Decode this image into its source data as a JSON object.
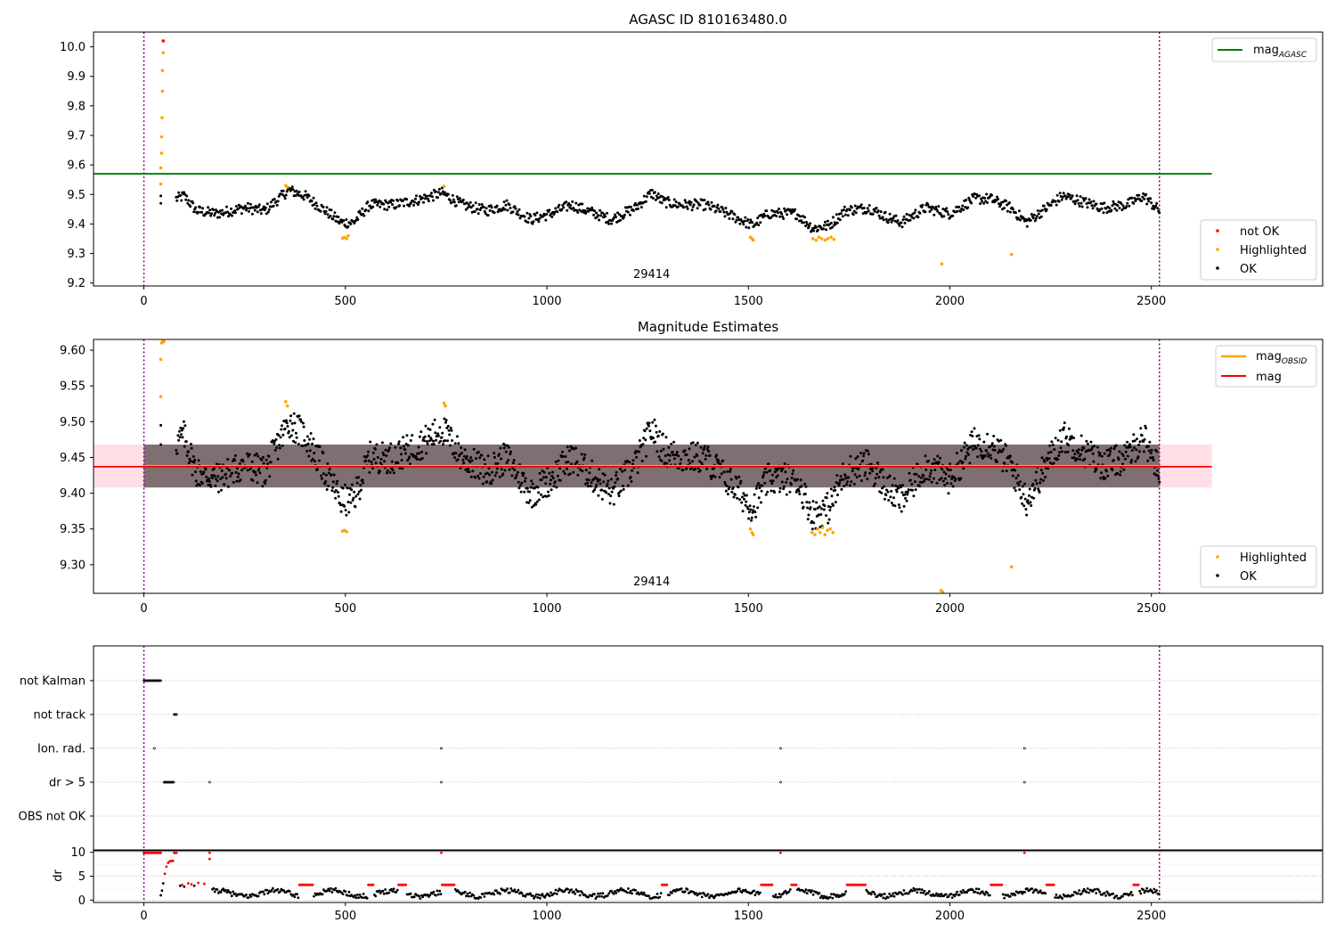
{
  "figure": {
    "background": "#ffffff",
    "colors": {
      "ok": "#000000",
      "highlighted": "#ffa500",
      "not_ok": "#ff0000",
      "mag_agasc": "#008000",
      "mag_obsid": "#ffa500",
      "mag": "#ff0000",
      "obs_boundary": "#800080",
      "band_obsid": "#ffa07a",
      "band_mag": "#ffc0cb"
    }
  },
  "chart_data": [
    {
      "id": "agasc",
      "type": "scatter",
      "title": "AGASC ID 810163480.0",
      "xlim": [
        -125,
        2925
      ],
      "ylim": [
        9.19,
        10.05
      ],
      "xticks": [
        0,
        500,
        1000,
        1500,
        2000,
        2500
      ],
      "yticks": [
        9.2,
        9.3,
        9.4,
        9.5,
        9.6,
        9.7,
        9.8,
        9.9,
        10.0
      ],
      "xtick_labels": [
        "0",
        "500",
        "1000",
        "1500",
        "2000",
        "2500"
      ],
      "ytick_labels": [
        "9.2",
        "9.3",
        "9.4",
        "9.5",
        "9.6",
        "9.7",
        "9.8",
        "9.9",
        "10.0"
      ],
      "vlines": [
        0,
        2520
      ],
      "obsid_label": {
        "text": "29414",
        "x": 1260
      },
      "hlines": [
        {
          "name": "mag_agasc",
          "y": 9.57,
          "xmin": -125,
          "xmax": 2650
        }
      ],
      "ok_points": {
        "curve": "obsid_mag",
        "offset": 0.015,
        "jitter": 0.018,
        "step": 2.2,
        "xmin": 80,
        "xmax": 2520
      },
      "ok_extra": [
        [
          42,
          9.495
        ],
        [
          42,
          9.47
        ]
      ],
      "highlighted": [
        [
          42,
          9.535
        ],
        [
          42,
          9.59
        ],
        [
          44,
          9.64
        ],
        [
          44,
          9.695
        ],
        [
          45,
          9.76
        ],
        [
          46,
          9.85
        ],
        [
          46,
          9.92
        ],
        [
          48,
          9.98
        ],
        [
          352,
          9.53
        ],
        [
          356,
          9.525
        ],
        [
          493,
          9.352
        ],
        [
          498,
          9.355
        ],
        [
          503,
          9.35
        ],
        [
          507,
          9.36
        ],
        [
          745,
          9.528
        ],
        [
          1505,
          9.355
        ],
        [
          1509,
          9.35
        ],
        [
          1512,
          9.345
        ],
        [
          1660,
          9.35
        ],
        [
          1668,
          9.345
        ],
        [
          1675,
          9.355
        ],
        [
          1682,
          9.35
        ],
        [
          1690,
          9.345
        ],
        [
          1697,
          9.35
        ],
        [
          1705,
          9.355
        ],
        [
          1712,
          9.348
        ],
        [
          1980,
          9.265
        ],
        [
          2153,
          9.297
        ]
      ],
      "not_ok": [
        [
          48,
          10.02
        ]
      ],
      "legends": [
        {
          "position": "upper right",
          "entries": [
            {
              "label": "mag",
              "sub": "AGASC",
              "type": "line",
              "color": "mag_agasc"
            }
          ]
        },
        {
          "position": "lower right",
          "entries": [
            {
              "label": "not OK",
              "type": "marker",
              "color": "not_ok"
            },
            {
              "label": "Highlighted",
              "type": "marker",
              "color": "highlighted"
            },
            {
              "label": "OK",
              "type": "marker",
              "color": "ok"
            }
          ]
        }
      ]
    },
    {
      "id": "magnitude-estimates",
      "type": "scatter",
      "title": "Magnitude Estimates",
      "xlim": [
        -125,
        2925
      ],
      "ylim": [
        9.26,
        9.615
      ],
      "xticks": [
        0,
        500,
        1000,
        1500,
        2000,
        2500
      ],
      "yticks": [
        9.3,
        9.35,
        9.4,
        9.45,
        9.5,
        9.55,
        9.6
      ],
      "xtick_labels": [
        "0",
        "500",
        "1000",
        "1500",
        "2000",
        "2500"
      ],
      "ytick_labels": [
        "9.30",
        "9.35",
        "9.40",
        "9.45",
        "9.50",
        "9.55",
        "9.60"
      ],
      "vlines": [
        0,
        2520
      ],
      "obsid_label": {
        "text": "29414",
        "x": 1260
      },
      "bands": [
        {
          "name": "mag",
          "y0": 9.408,
          "y1": 9.468,
          "xmin": -125,
          "xmax": 2650
        },
        {
          "name": "mag_obsid",
          "y0": 9.408,
          "y1": 9.468,
          "xmin": 0,
          "xmax": 2520
        }
      ],
      "hlines": [
        {
          "name": "mag_obsid",
          "y": 9.438,
          "xmin": 0,
          "xmax": 2520
        },
        {
          "name": "mag",
          "y": 9.437,
          "xmin": -125,
          "xmax": 2650
        }
      ],
      "ok_points": {
        "curve": "obsid_mag",
        "offset": 0.0,
        "jitter": 0.022,
        "step": 1.6,
        "xmin": 80,
        "xmax": 2520
      },
      "ok_extra": [
        [
          42,
          9.495
        ],
        [
          42,
          9.468
        ]
      ],
      "highlighted": [
        [
          42,
          9.535
        ],
        [
          42,
          9.587
        ],
        [
          44,
          9.61
        ],
        [
          46,
          9.612
        ],
        [
          48,
          9.612
        ],
        [
          50,
          9.612
        ],
        [
          352,
          9.528
        ],
        [
          356,
          9.522
        ],
        [
          493,
          9.347
        ],
        [
          498,
          9.348
        ],
        [
          503,
          9.346
        ],
        [
          745,
          9.526
        ],
        [
          748,
          9.522
        ],
        [
          1505,
          9.35
        ],
        [
          1509,
          9.345
        ],
        [
          1512,
          9.342
        ],
        [
          1658,
          9.345
        ],
        [
          1665,
          9.342
        ],
        [
          1672,
          9.35
        ],
        [
          1678,
          9.345
        ],
        [
          1684,
          9.352
        ],
        [
          1690,
          9.342
        ],
        [
          1696,
          9.348
        ],
        [
          1703,
          9.35
        ],
        [
          1710,
          9.345
        ],
        [
          1978,
          9.264
        ],
        [
          1982,
          9.262
        ],
        [
          2153,
          9.297
        ]
      ],
      "legends": [
        {
          "position": "upper right",
          "entries": [
            {
              "label": "mag",
              "sub": "OBSID",
              "type": "line",
              "color": "mag_obsid"
            },
            {
              "label": "mag",
              "type": "line",
              "color": "mag"
            }
          ]
        },
        {
          "position": "lower right",
          "entries": [
            {
              "label": "Highlighted",
              "type": "marker",
              "color": "highlighted"
            },
            {
              "label": "OK",
              "type": "marker",
              "color": "ok"
            }
          ]
        }
      ]
    },
    {
      "id": "flags",
      "type": "scatter",
      "xlim": [
        -125,
        2925
      ],
      "vlines": [
        0,
        2520
      ],
      "categories": [
        "not Kalman",
        "not track",
        "Ion. rad.",
        "dr > 5",
        "OBS not OK"
      ],
      "category_points": {
        "not Kalman": {
          "ranges": [
            [
              0,
              42
            ]
          ],
          "points": []
        },
        "not track": {
          "ranges": [
            [
              75,
              82
            ]
          ],
          "points": []
        },
        "Ion. rad.": {
          "ranges": [],
          "points": [
            26,
            738,
            1580,
            2185
          ]
        },
        "dr > 5": {
          "ranges": [
            [
              50,
              75
            ]
          ],
          "points": [
            163,
            738,
            1580,
            2185
          ]
        },
        "OBS not OK": {
          "ranges": [],
          "points": []
        }
      }
    },
    {
      "id": "dr",
      "type": "scatter",
      "ylabel": "dr",
      "xlim": [
        -125,
        2925
      ],
      "ylim": [
        -0.5,
        10.5
      ],
      "xticks": [
        0,
        500,
        1000,
        1500,
        2000,
        2500
      ],
      "yticks": [
        0,
        5,
        10
      ],
      "xtick_labels": [
        "0",
        "500",
        "1000",
        "1500",
        "2000",
        "2500"
      ],
      "ytick_labels": [
        "0",
        "5",
        "10"
      ],
      "vlines": [
        0,
        2520
      ],
      "dr_high": {
        "ranges": [
          [
            0,
            42
          ],
          [
            75,
            82
          ]
        ],
        "points": [
          163,
          738,
          1580,
          2185
        ],
        "value": 9.9
      },
      "dr_ramp": [
        [
          42,
          1.0
        ],
        [
          45,
          2.0
        ],
        [
          48,
          3.5
        ],
        [
          52,
          5.5
        ],
        [
          56,
          7.0
        ],
        [
          60,
          7.8
        ],
        [
          64,
          8.1
        ],
        [
          68,
          8.2
        ],
        [
          72,
          8.2
        ]
      ],
      "dr_after": [
        [
          90,
          3.0
        ],
        [
          95,
          3.2
        ],
        [
          100,
          2.8
        ],
        [
          110,
          3.5
        ],
        [
          118,
          3.3
        ],
        [
          125,
          3.0
        ],
        [
          135,
          3.6
        ],
        [
          150,
          3.4
        ],
        [
          163,
          8.6
        ]
      ],
      "dr_series": {
        "xmin": 170,
        "xmax": 2520,
        "step": 3,
        "base": 1.4,
        "amp": 1.0
      },
      "dr_red_spans": [
        [
          385,
          420
        ],
        [
          555,
          570
        ],
        [
          630,
          650
        ],
        [
          740,
          770
        ],
        [
          1285,
          1300
        ],
        [
          1530,
          1560
        ],
        [
          1605,
          1620
        ],
        [
          1745,
          1790
        ],
        [
          2100,
          2130
        ],
        [
          2240,
          2260
        ],
        [
          2455,
          2470
        ]
      ]
    }
  ]
}
